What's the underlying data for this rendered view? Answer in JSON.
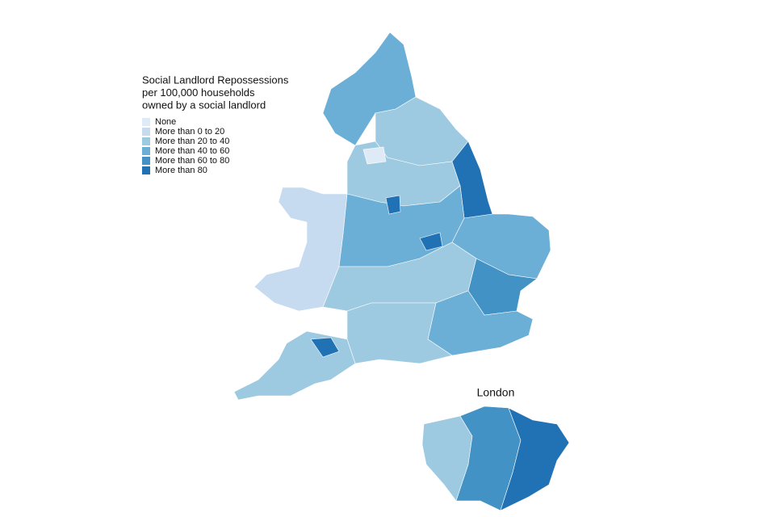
{
  "legend": {
    "title_lines": [
      "Social Landlord Repossessions",
      "per 100,000 households",
      "owned by a social landlord"
    ],
    "items": [
      {
        "label": "None",
        "color": "#deebf7"
      },
      {
        "label": "More than 0 to 20",
        "color": "#c6dbef"
      },
      {
        "label": "More than 20 to 40",
        "color": "#9ecae1"
      },
      {
        "label": "More than 40 to 60",
        "color": "#6baed6"
      },
      {
        "label": "More than 60 to 80",
        "color": "#4292c6"
      },
      {
        "label": "More than 80",
        "color": "#2171b5"
      }
    ]
  },
  "inset": {
    "title": "London"
  }
}
